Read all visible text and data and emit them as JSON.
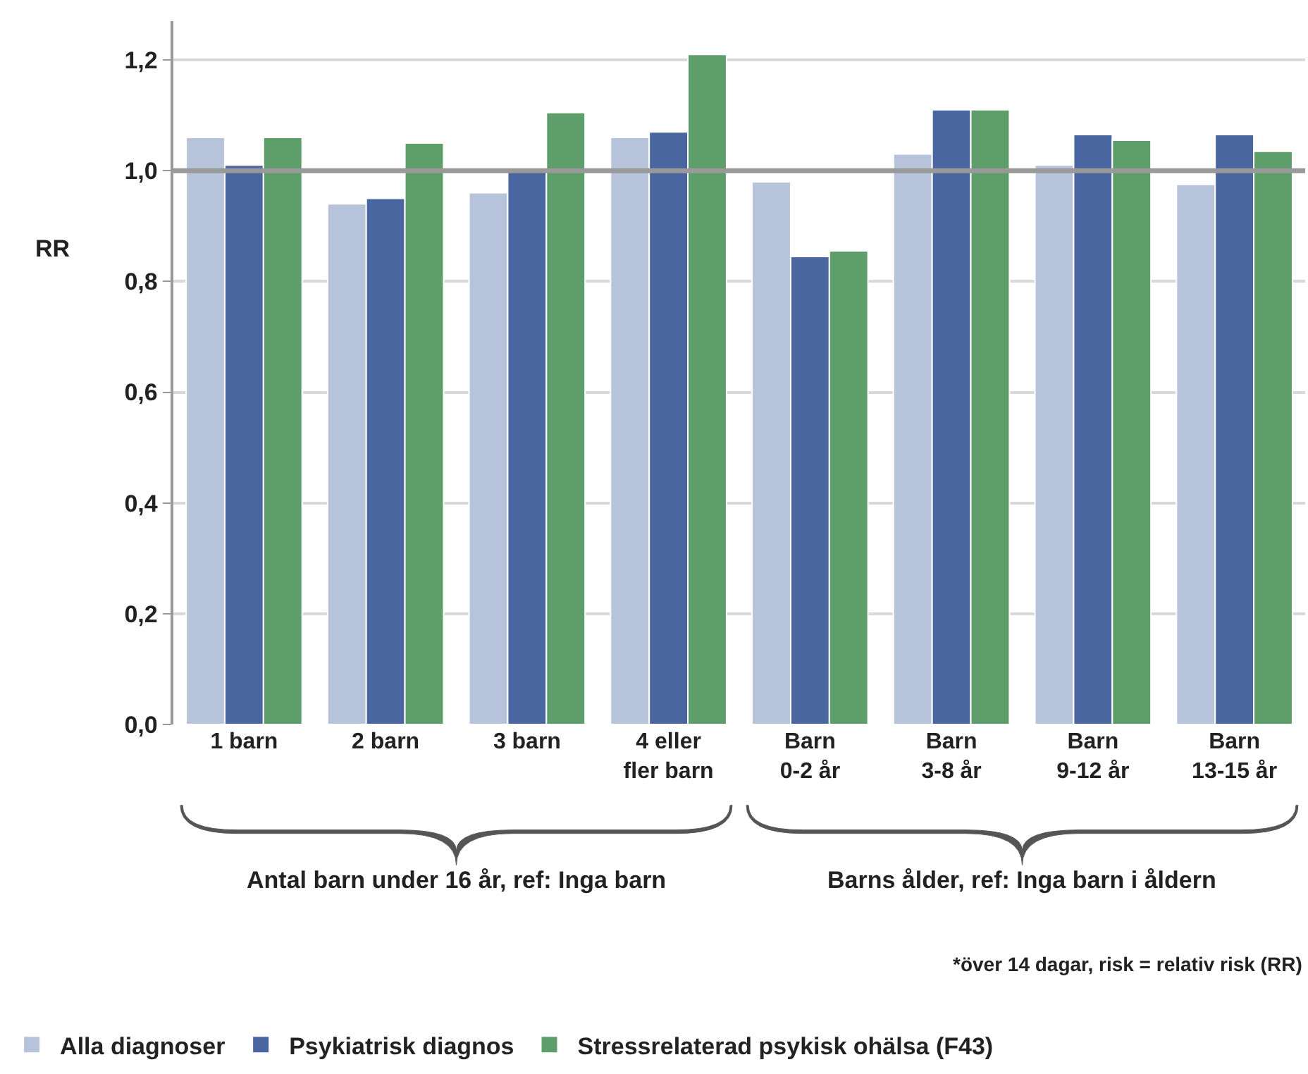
{
  "chart_data": {
    "type": "bar",
    "ylabel": "RR",
    "categories": [
      "1 barn",
      "2 barn",
      "3 barn",
      "4 eller\nfler barn",
      "Barn\n0-2 år",
      "Barn\n3-8 år",
      "Barn\n9-12 år",
      "Barn\n13-15 år"
    ],
    "series": [
      {
        "name": "Alla diagnoser",
        "color": "#b7c3da",
        "values": [
          1.06,
          0.94,
          0.96,
          1.06,
          0.98,
          1.03,
          1.01,
          0.975
        ]
      },
      {
        "name": "Psykiatrisk diagnos",
        "color": "#4a66a0",
        "values": [
          1.01,
          0.95,
          1.0,
          1.07,
          0.845,
          1.11,
          1.065,
          1.065
        ]
      },
      {
        "name": "Stressrelaterad psykisk ohälsa (F43)",
        "color": "#5e9e6b",
        "values": [
          1.06,
          1.05,
          1.105,
          1.21,
          0.855,
          1.11,
          1.055,
          1.035
        ]
      }
    ],
    "ylim": [
      0,
      1.27
    ],
    "yticks": [
      {
        "value": 0,
        "label": "0,0"
      },
      {
        "value": 0.2,
        "label": "0,2"
      },
      {
        "value": 0.4,
        "label": "0,4"
      },
      {
        "value": 0.6,
        "label": "0,6"
      },
      {
        "value": 0.8,
        "label": "0,8"
      },
      {
        "value": 1.0,
        "label": "1,0"
      },
      {
        "value": 1.2,
        "label": "1,2"
      }
    ],
    "grid": "y",
    "ref_lines": [
      {
        "axis": "y",
        "value": 1.0,
        "color": "#999999"
      }
    ],
    "annotations": [
      "Antal barn under 16 år, ref: Inga barn",
      "Barns ålder, ref: Inga barn i åldern",
      "*över 14 dagar, risk = relativ risk (RR)"
    ],
    "legend": "bottom"
  }
}
